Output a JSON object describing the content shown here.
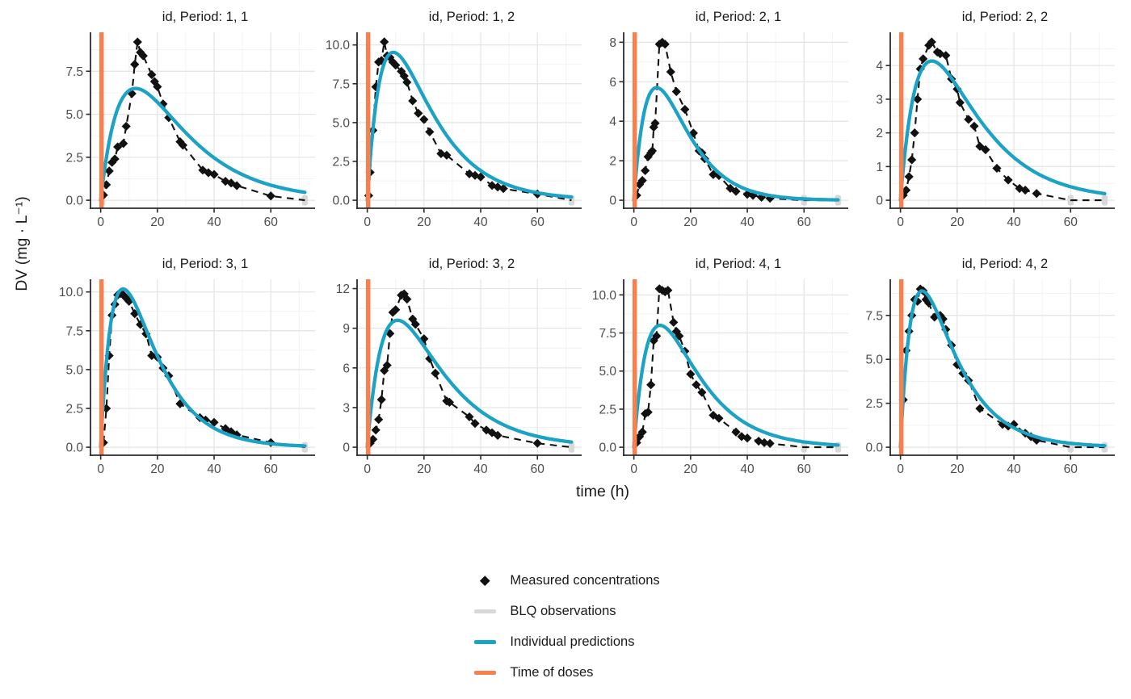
{
  "figure": {
    "y_axis_label": "DV (mg · L⁻¹)",
    "x_axis_label": "time (h)"
  },
  "colors": {
    "measured": "#111111",
    "blq": "#d8d8d8",
    "prediction": "#1ba2c4",
    "dose": "#f87f4e",
    "grid_major": "#e3e3e3",
    "grid_minor": "#f1f1f1",
    "axis": "#2b2b2b",
    "tick_label": "#4d4d4d",
    "text": "#1a1a1a"
  },
  "legend": {
    "items": [
      {
        "label": "Measured concentrations",
        "key": "diamond",
        "color_key": "measured"
      },
      {
        "label": "BLQ observations",
        "key": "bar",
        "color_key": "blq"
      },
      {
        "label": "Individual predictions",
        "key": "bar",
        "color_key": "prediction"
      },
      {
        "label": "Time of doses",
        "key": "bar",
        "color_key": "dose"
      }
    ]
  },
  "chart_data": {
    "type": "faceted line+scatter (concentration-time profiles)",
    "shared": {
      "xlim": [
        0,
        72
      ],
      "xticks": [
        0,
        20,
        40,
        60
      ],
      "xtick_labels": [
        "0",
        "20",
        "40",
        "60"
      ],
      "xminor": [
        10,
        30,
        50,
        70
      ],
      "dose_time": 0.3,
      "grid": true
    },
    "facets": [
      {
        "title": "id, Period: 1, 1",
        "ylim": [
          0,
          9.3
        ],
        "yticks": [
          0,
          2.5,
          5,
          7.5
        ],
        "ytick_labels": [
          "0.0",
          "2.5",
          "5.0",
          "7.5"
        ],
        "measured": [
          [
            1,
            0.3
          ],
          [
            2,
            0.9
          ],
          [
            3,
            1.7
          ],
          [
            4,
            2.2
          ],
          [
            5,
            2.4
          ],
          [
            6,
            3.1
          ],
          [
            8,
            3.3
          ],
          [
            9,
            4.3
          ],
          [
            11,
            6.2
          ],
          [
            12,
            7.9
          ],
          [
            13,
            9.2
          ],
          [
            14,
            8.6
          ],
          [
            15,
            8.4
          ],
          [
            18,
            7.3
          ],
          [
            19,
            6.9
          ],
          [
            20,
            6.6
          ],
          [
            22,
            5.6
          ],
          [
            24,
            4.8
          ],
          [
            28,
            3.4
          ],
          [
            29,
            3.2
          ],
          [
            36,
            1.75
          ],
          [
            38,
            1.6
          ],
          [
            40,
            1.5
          ],
          [
            44,
            1.1
          ],
          [
            46,
            1.0
          ],
          [
            48,
            0.85
          ],
          [
            60,
            0.25
          ]
        ],
        "blq_times": [
          0.5,
          72
        ],
        "prediction": {
          "A": 24.5,
          "ka": 0.115,
          "ke": 0.055
        }
      },
      {
        "title": "id, Period: 1, 2",
        "ylim": [
          0,
          10.3
        ],
        "yticks": [
          0,
          2.5,
          5,
          7.5,
          10
        ],
        "ytick_labels": [
          "0.0",
          "2.5",
          "5.0",
          "7.5",
          "10.0"
        ],
        "measured": [
          [
            0.5,
            0.3
          ],
          [
            1,
            1.8
          ],
          [
            2,
            4.5
          ],
          [
            3,
            7.3
          ],
          [
            4,
            8.9
          ],
          [
            5,
            9.0
          ],
          [
            6,
            10.2
          ],
          [
            7,
            9.3
          ],
          [
            8,
            9.2
          ],
          [
            9,
            8.9
          ],
          [
            10,
            8.7
          ],
          [
            12,
            8.3
          ],
          [
            13,
            8.0
          ],
          [
            14,
            7.6
          ],
          [
            16,
            6.4
          ],
          [
            18,
            5.6
          ],
          [
            20,
            5.2
          ],
          [
            22,
            4.4
          ],
          [
            26,
            3.0
          ],
          [
            28,
            2.9
          ],
          [
            36,
            1.7
          ],
          [
            38,
            1.6
          ],
          [
            40,
            1.5
          ],
          [
            44,
            0.95
          ],
          [
            46,
            0.85
          ],
          [
            48,
            0.75
          ],
          [
            60,
            0.4
          ]
        ],
        "blq_times": [
          72
        ],
        "prediction": {
          "A": 32.2,
          "ka": 0.16,
          "ke": 0.07
        }
      },
      {
        "title": "id, Period: 2, 1",
        "ylim": [
          0,
          8.1
        ],
        "yticks": [
          0,
          2,
          4,
          6,
          8
        ],
        "ytick_labels": [
          "0",
          "2",
          "4",
          "6",
          "8"
        ],
        "measured": [
          [
            1,
            0.25
          ],
          [
            2,
            0.8
          ],
          [
            3,
            1.0
          ],
          [
            4,
            1.5
          ],
          [
            5,
            2.2
          ],
          [
            6,
            2.4
          ],
          [
            6.5,
            2.5
          ],
          [
            7,
            3.7
          ],
          [
            7.5,
            3.9
          ],
          [
            9,
            7.9
          ],
          [
            10,
            8.0
          ],
          [
            11,
            7.9
          ],
          [
            13,
            6.5
          ],
          [
            15,
            5.5
          ],
          [
            18,
            4.6
          ],
          [
            21,
            3.4
          ],
          [
            23,
            2.5
          ],
          [
            24,
            2.4
          ],
          [
            25,
            2.1
          ],
          [
            28,
            1.3
          ],
          [
            30,
            1.25
          ],
          [
            34,
            0.6
          ],
          [
            36,
            0.45
          ],
          [
            40,
            0.3
          ],
          [
            42,
            0.25
          ],
          [
            45,
            0.15
          ],
          [
            48,
            0.1
          ]
        ],
        "blq_times": [
          60,
          72
        ],
        "prediction": {
          "A": 96.8,
          "ka": 0.135,
          "ke": 0.115
        }
      },
      {
        "title": "id, Period: 2, 2",
        "ylim": [
          0,
          4.75
        ],
        "yticks": [
          0,
          1,
          2,
          3,
          4
        ],
        "ytick_labels": [
          "0",
          "1",
          "2",
          "3",
          "4"
        ],
        "measured": [
          [
            1,
            0.15
          ],
          [
            2,
            0.3
          ],
          [
            3,
            0.7
          ],
          [
            4,
            1.2
          ],
          [
            5,
            2.0
          ],
          [
            6,
            3.0
          ],
          [
            7,
            3.9
          ],
          [
            8,
            4.2
          ],
          [
            10,
            4.6
          ],
          [
            11,
            4.7
          ],
          [
            13,
            4.4
          ],
          [
            14,
            4.35
          ],
          [
            16,
            4.3
          ],
          [
            18,
            3.6
          ],
          [
            20,
            3.3
          ],
          [
            21,
            2.9
          ],
          [
            24,
            2.4
          ],
          [
            26,
            2.2
          ],
          [
            28,
            1.6
          ],
          [
            30,
            1.5
          ],
          [
            34,
            0.95
          ],
          [
            38,
            0.6
          ],
          [
            42,
            0.35
          ],
          [
            44,
            0.3
          ],
          [
            48,
            0.2
          ]
        ],
        "blq_times": [
          60,
          72
        ],
        "prediction": {
          "A": 14.9,
          "ka": 0.13,
          "ke": 0.06
        }
      },
      {
        "title": "id, Period: 3, 1",
        "ylim": [
          0,
          10.3
        ],
        "yticks": [
          0,
          2.5,
          5,
          7.5,
          10
        ],
        "ytick_labels": [
          "0.0",
          "2.5",
          "5.0",
          "7.5",
          "10.0"
        ],
        "measured": [
          [
            1,
            0.3
          ],
          [
            2,
            2.5
          ],
          [
            3,
            5.9
          ],
          [
            4,
            8.5
          ],
          [
            5,
            9.2
          ],
          [
            6,
            9.8
          ],
          [
            7,
            9.9
          ],
          [
            8,
            9.8
          ],
          [
            9,
            9.6
          ],
          [
            10,
            9.4
          ],
          [
            12,
            8.6
          ],
          [
            14,
            7.9
          ],
          [
            16,
            7.3
          ],
          [
            18,
            5.9
          ],
          [
            20,
            5.8
          ],
          [
            22,
            5.1
          ],
          [
            24,
            4.6
          ],
          [
            28,
            2.8
          ],
          [
            35,
            1.9
          ],
          [
            37,
            1.75
          ],
          [
            40,
            1.6
          ],
          [
            44,
            1.2
          ],
          [
            46,
            1.0
          ],
          [
            48,
            0.8
          ],
          [
            60,
            0.3
          ]
        ],
        "blq_times": [
          72
        ],
        "prediction": {
          "A": 37.8,
          "ka": 0.18,
          "ke": 0.085
        }
      },
      {
        "title": "id, Period: 3, 2",
        "ylim": [
          0,
          12.1
        ],
        "yticks": [
          0,
          3,
          6,
          9,
          12
        ],
        "ytick_labels": [
          "0",
          "3",
          "6",
          "9",
          "12"
        ],
        "measured": [
          [
            1,
            0.3
          ],
          [
            2,
            0.6
          ],
          [
            3,
            1.3
          ],
          [
            4,
            2.1
          ],
          [
            5,
            3.6
          ],
          [
            6,
            5.8
          ],
          [
            7,
            6.2
          ],
          [
            8,
            8.6
          ],
          [
            9,
            10.2
          ],
          [
            10,
            10.4
          ],
          [
            12,
            11.5
          ],
          [
            13,
            11.6
          ],
          [
            14,
            11.2
          ],
          [
            16,
            9.7
          ],
          [
            17,
            9.3
          ],
          [
            20,
            8.2
          ],
          [
            22,
            6.7
          ],
          [
            24,
            5.6
          ],
          [
            28,
            3.5
          ],
          [
            29,
            3.4
          ],
          [
            36,
            2.3
          ],
          [
            38,
            1.8
          ],
          [
            42,
            1.3
          ],
          [
            44,
            1.1
          ],
          [
            46,
            0.9
          ],
          [
            60,
            0.3
          ]
        ],
        "blq_times": [
          72
        ],
        "prediction": {
          "A": 34.4,
          "ka": 0.135,
          "ke": 0.062
        }
      },
      {
        "title": "id, Period: 4, 1",
        "ylim": [
          0,
          10.5
        ],
        "yticks": [
          0,
          2.5,
          5,
          7.5,
          10
        ],
        "ytick_labels": [
          "0.0",
          "2.5",
          "5.0",
          "7.5",
          "10.0"
        ],
        "measured": [
          [
            1,
            0.3
          ],
          [
            2,
            0.7
          ],
          [
            3,
            1.0
          ],
          [
            4,
            2.2
          ],
          [
            5,
            2.3
          ],
          [
            6,
            4.1
          ],
          [
            7,
            7.0
          ],
          [
            8,
            7.3
          ],
          [
            9,
            10.4
          ],
          [
            10,
            10.3
          ],
          [
            11,
            10.2
          ],
          [
            12,
            10.3
          ],
          [
            14,
            8.2
          ],
          [
            15,
            7.6
          ],
          [
            16,
            7.3
          ],
          [
            18,
            6.3
          ],
          [
            20,
            4.8
          ],
          [
            22,
            4.1
          ],
          [
            24,
            3.6
          ],
          [
            28,
            2.1
          ],
          [
            30,
            1.9
          ],
          [
            36,
            1.0
          ],
          [
            38,
            0.7
          ],
          [
            40,
            0.6
          ],
          [
            44,
            0.4
          ],
          [
            46,
            0.3
          ],
          [
            48,
            0.25
          ]
        ],
        "blq_times": [
          60,
          72
        ],
        "prediction": {
          "A": 32.0,
          "ka": 0.15,
          "ke": 0.075
        }
      },
      {
        "title": "id, Period: 4, 2",
        "ylim": [
          0,
          9.1
        ],
        "yticks": [
          0,
          2.5,
          5,
          7.5
        ],
        "ytick_labels": [
          "0.0",
          "2.5",
          "5.0",
          "7.5"
        ],
        "measured": [
          [
            1,
            2.7
          ],
          [
            2,
            5.5
          ],
          [
            3,
            6.6
          ],
          [
            4,
            7.5
          ],
          [
            5,
            8.4
          ],
          [
            6,
            8.3
          ],
          [
            7,
            9.0
          ],
          [
            8,
            8.9
          ],
          [
            9,
            8.4
          ],
          [
            10,
            8.2
          ],
          [
            12,
            7.4
          ],
          [
            14,
            7.5
          ],
          [
            15,
            7.3
          ],
          [
            16,
            6.7
          ],
          [
            18,
            5.8
          ],
          [
            20,
            4.7
          ],
          [
            22,
            4.2
          ],
          [
            24,
            3.8
          ],
          [
            28,
            2.2
          ],
          [
            36,
            1.3
          ],
          [
            38,
            1.2
          ],
          [
            40,
            1.3
          ],
          [
            44,
            0.8
          ],
          [
            46,
            0.6
          ],
          [
            48,
            0.4
          ]
        ],
        "blq_times": [
          60,
          72
        ],
        "prediction": {
          "A": 27.3,
          "ka": 0.2,
          "ke": 0.08
        }
      }
    ]
  }
}
